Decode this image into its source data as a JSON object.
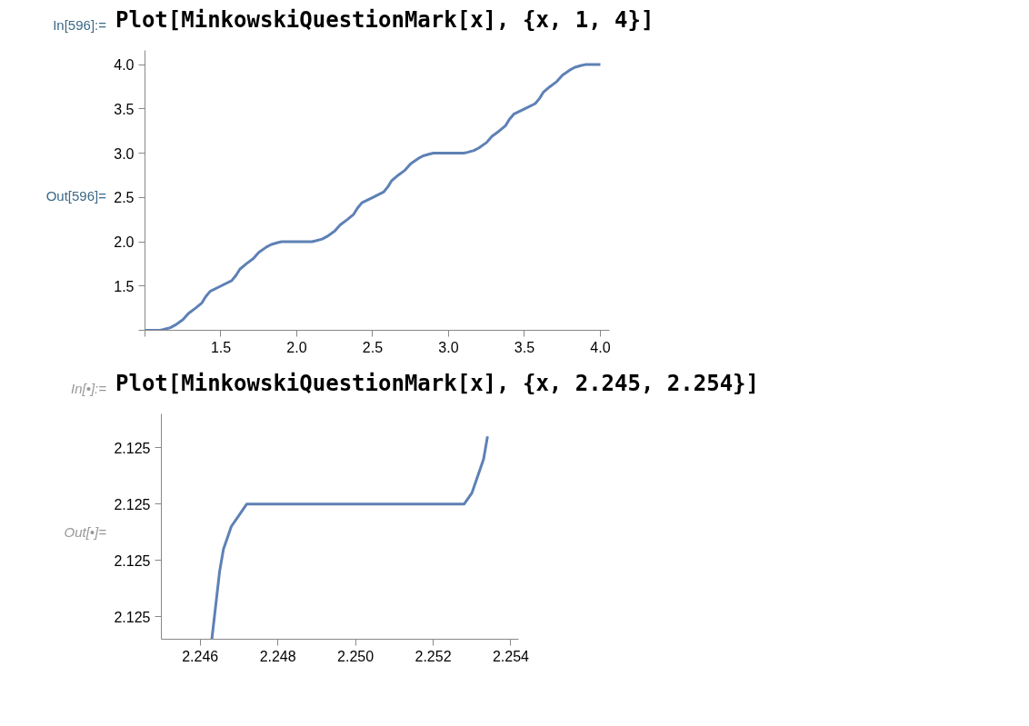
{
  "chart_data": [
    {
      "type": "line",
      "title": "Plot[MinkowskiQuestionMark[x], {x, 1, 4}]",
      "annotations": [
        "In[596]:=",
        "Out[596]="
      ],
      "x": [
        1,
        1.1,
        1.125,
        1.167,
        1.2,
        1.25,
        1.286,
        1.333,
        1.375,
        1.4,
        1.429,
        1.5,
        1.571,
        1.6,
        1.625,
        1.667,
        1.714,
        1.75,
        1.8,
        1.833,
        1.875,
        1.9,
        2,
        2.1,
        2.125,
        2.167,
        2.2,
        2.25,
        2.286,
        2.333,
        2.375,
        2.4,
        2.429,
        2.5,
        2.571,
        2.6,
        2.625,
        2.667,
        2.714,
        2.75,
        2.8,
        2.833,
        2.875,
        2.9,
        3,
        3.1,
        3.125,
        3.167,
        3.2,
        3.25,
        3.286,
        3.333,
        3.375,
        3.4,
        3.429,
        3.5,
        3.571,
        3.6,
        3.625,
        3.667,
        3.714,
        3.75,
        3.8,
        3.833,
        3.875,
        3.9,
        4
      ],
      "series": [
        {
          "color": "#5e81b5",
          "values": [
            1,
            1.0,
            1.01,
            1.03,
            1.06,
            1.12,
            1.19,
            1.25,
            1.31,
            1.38,
            1.44,
            1.5,
            1.56,
            1.62,
            1.69,
            1.75,
            1.81,
            1.88,
            1.94,
            1.97,
            1.99,
            2.0,
            2,
            2.0,
            2.01,
            2.03,
            2.06,
            2.12,
            2.19,
            2.25,
            2.31,
            2.38,
            2.44,
            2.5,
            2.56,
            2.62,
            2.69,
            2.75,
            2.81,
            2.88,
            2.94,
            2.97,
            2.99,
            3.0,
            3,
            3.0,
            3.01,
            3.03,
            3.06,
            3.12,
            3.19,
            3.25,
            3.31,
            3.38,
            3.44,
            3.5,
            3.56,
            3.62,
            3.69,
            3.75,
            3.81,
            3.88,
            3.94,
            3.97,
            3.99,
            4.0,
            4
          ]
        }
      ],
      "xlim": [
        1,
        4.06
      ],
      "ylim": [
        1,
        4.16
      ],
      "xticks": [
        {
          "value": 1,
          "label": null
        },
        1.5,
        {
          "value": 2,
          "label": "2.0"
        },
        2.5,
        {
          "value": 3,
          "label": "3.0"
        },
        3.5,
        {
          "value": 4,
          "label": "4.0"
        }
      ],
      "yticks": [
        {
          "value": 1,
          "label": null
        },
        1.5,
        {
          "value": 2,
          "label": "2.0"
        },
        2.5,
        {
          "value": 3,
          "label": "3.0"
        },
        3.5,
        {
          "value": 4,
          "label": "4.0"
        }
      ],
      "grid": false,
      "line_style": "solid"
    },
    {
      "type": "line",
      "title": "Plot[MinkowskiQuestionMark[x], {x, 2.245, 2.254}]",
      "annotations": [
        "In[•]:=",
        "Out[•]="
      ],
      "x": [
        2.2463,
        2.2464,
        2.2465,
        2.2466,
        2.2467,
        2.2468,
        2.247,
        2.2472,
        2.2475,
        2.248,
        2.25,
        2.252,
        2.2525,
        2.2528,
        2.253,
        2.2532,
        2.2533,
        2.2534
      ],
      "series": [
        {
          "color": "#5e81b5",
          "values": [
            2.1249988,
            2.1249991,
            2.1249994,
            2.1249996,
            2.1249997,
            2.1249998,
            2.1249999,
            2.125,
            2.125,
            2.125,
            2.125,
            2.125,
            2.125,
            2.125,
            2.1250001,
            2.1250003,
            2.1250004,
            2.1250006
          ]
        }
      ],
      "xlim": [
        2.245,
        2.2542
      ],
      "ylim": [
        2.1249988,
        2.1250008
      ],
      "xticks": [
        2.246,
        2.248,
        {
          "value": 2.25,
          "label": "2.250"
        },
        2.252,
        2.254
      ],
      "yticks": [
        {
          "value": 2.124999,
          "label": "2.125"
        },
        {
          "value": 2.1249995,
          "label": "2.125"
        },
        2.125,
        {
          "value": 2.1250005,
          "label": "2.125"
        }
      ],
      "grid": false,
      "line_style": "solid"
    }
  ]
}
